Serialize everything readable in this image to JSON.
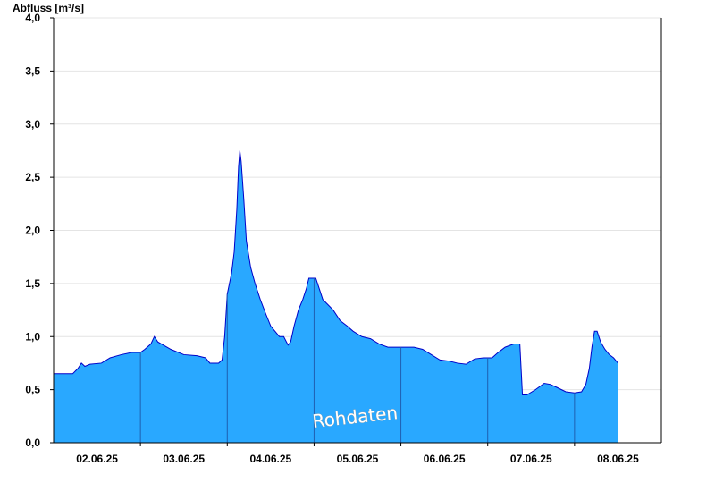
{
  "chart_data": {
    "type": "area",
    "ylabel": "Abfluss [m³/s]",
    "ylim": [
      0,
      4.0
    ],
    "y_ticks": [
      "0,0",
      "0,5",
      "1,0",
      "1,5",
      "2,0",
      "2,5",
      "3,0",
      "3,5",
      "4,0"
    ],
    "x_ticks": [
      "02.06.25",
      "03.06.25",
      "04.06.25",
      "05.06.25",
      "06.06.25",
      "07.06.25",
      "08.06.25"
    ],
    "xlim_days": [
      1.5,
      8.5
    ],
    "grid": true,
    "watermark": "Rohdaten",
    "colors": {
      "fill": "#29a8ff",
      "line": "#0000c8",
      "grid": "#e4e4e4"
    },
    "series": [
      {
        "points": [
          [
            1.5,
            0.65
          ],
          [
            1.72,
            0.65
          ],
          [
            1.78,
            0.7
          ],
          [
            1.82,
            0.75
          ],
          [
            1.86,
            0.72
          ],
          [
            1.92,
            0.74
          ],
          [
            2.05,
            0.75
          ],
          [
            2.15,
            0.8
          ],
          [
            2.28,
            0.83
          ],
          [
            2.4,
            0.85
          ],
          [
            2.5,
            0.85
          ],
          [
            2.55,
            0.88
          ],
          [
            2.62,
            0.93
          ],
          [
            2.66,
            1.0
          ],
          [
            2.7,
            0.95
          ],
          [
            2.85,
            0.88
          ],
          [
            3.0,
            0.83
          ],
          [
            3.15,
            0.82
          ],
          [
            3.25,
            0.8
          ],
          [
            3.3,
            0.75
          ],
          [
            3.4,
            0.75
          ],
          [
            3.44,
            0.78
          ],
          [
            3.47,
            1.0
          ],
          [
            3.5,
            1.4
          ],
          [
            3.55,
            1.6
          ],
          [
            3.58,
            1.8
          ],
          [
            3.61,
            2.2
          ],
          [
            3.63,
            2.6
          ],
          [
            3.645,
            2.75
          ],
          [
            3.66,
            2.65
          ],
          [
            3.69,
            2.3
          ],
          [
            3.72,
            1.9
          ],
          [
            3.77,
            1.65
          ],
          [
            3.82,
            1.5
          ],
          [
            3.88,
            1.35
          ],
          [
            3.95,
            1.2
          ],
          [
            4.0,
            1.1
          ],
          [
            4.05,
            1.05
          ],
          [
            4.1,
            1.0
          ],
          [
            4.15,
            1.0
          ],
          [
            4.2,
            0.92
          ],
          [
            4.23,
            0.95
          ],
          [
            4.27,
            1.1
          ],
          [
            4.32,
            1.25
          ],
          [
            4.37,
            1.35
          ],
          [
            4.41,
            1.45
          ],
          [
            4.44,
            1.55
          ],
          [
            4.48,
            1.55
          ],
          [
            4.52,
            1.55
          ],
          [
            4.56,
            1.45
          ],
          [
            4.6,
            1.35
          ],
          [
            4.66,
            1.3
          ],
          [
            4.72,
            1.25
          ],
          [
            4.8,
            1.15
          ],
          [
            4.88,
            1.1
          ],
          [
            4.95,
            1.05
          ],
          [
            5.05,
            1.0
          ],
          [
            5.15,
            0.98
          ],
          [
            5.25,
            0.93
          ],
          [
            5.35,
            0.9
          ],
          [
            5.5,
            0.9
          ],
          [
            5.65,
            0.9
          ],
          [
            5.75,
            0.88
          ],
          [
            5.85,
            0.83
          ],
          [
            5.95,
            0.78
          ],
          [
            6.05,
            0.77
          ],
          [
            6.15,
            0.75
          ],
          [
            6.25,
            0.74
          ],
          [
            6.35,
            0.79
          ],
          [
            6.45,
            0.8
          ],
          [
            6.55,
            0.8
          ],
          [
            6.62,
            0.85
          ],
          [
            6.7,
            0.9
          ],
          [
            6.8,
            0.93
          ],
          [
            6.87,
            0.93
          ],
          [
            6.9,
            0.45
          ],
          [
            6.95,
            0.45
          ],
          [
            7.05,
            0.5
          ],
          [
            7.15,
            0.56
          ],
          [
            7.22,
            0.55
          ],
          [
            7.3,
            0.52
          ],
          [
            7.4,
            0.48
          ],
          [
            7.5,
            0.47
          ],
          [
            7.58,
            0.48
          ],
          [
            7.63,
            0.55
          ],
          [
            7.67,
            0.7
          ],
          [
            7.7,
            0.9
          ],
          [
            7.73,
            1.05
          ],
          [
            7.76,
            1.05
          ],
          [
            7.8,
            0.95
          ],
          [
            7.85,
            0.88
          ],
          [
            7.9,
            0.83
          ],
          [
            7.95,
            0.8
          ],
          [
            8.0,
            0.75
          ]
        ]
      }
    ]
  }
}
